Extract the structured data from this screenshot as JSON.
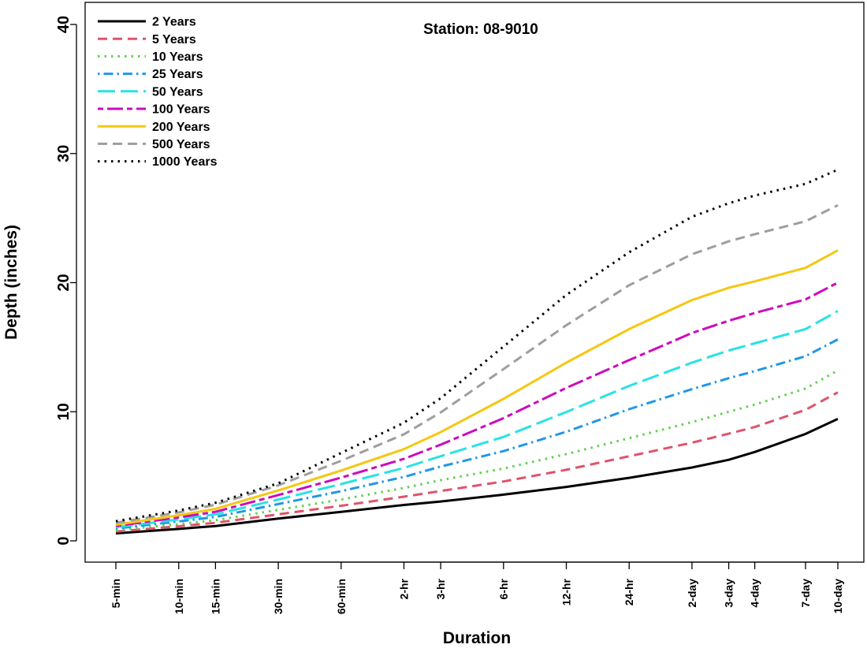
{
  "chart_data": {
    "type": "line",
    "title": "Station: 08-9010",
    "xlabel": "Duration",
    "ylabel": "Depth (inches)",
    "ylim": [
      0,
      40
    ],
    "yticks": [
      0,
      10,
      20,
      30,
      40
    ],
    "grid": false,
    "legend_position": "top-left",
    "x": [
      "5-min",
      "10-min",
      "15-min",
      "30-min",
      "60-min",
      "2-hr",
      "3-hr",
      "6-hr",
      "12-hr",
      "24-hr",
      "2-day",
      "3-day",
      "4-day",
      "7-day",
      "10-day"
    ],
    "x_hours": [
      0.0833,
      0.1667,
      0.25,
      0.5,
      1,
      2,
      3,
      6,
      12,
      24,
      48,
      72,
      96,
      168,
      240
    ],
    "x_scale": "log",
    "series": [
      {
        "name": "2 Years",
        "color": "#000000",
        "dash": "solid",
        "values": [
          0.58,
          0.92,
          1.15,
          1.72,
          2.25,
          2.78,
          3.05,
          3.58,
          4.18,
          4.88,
          5.68,
          6.28,
          6.88,
          8.28,
          9.45
        ]
      },
      {
        "name": "5 Years",
        "color": "#df536b",
        "dash": "dashed",
        "values": [
          0.72,
          1.13,
          1.4,
          2.05,
          2.72,
          3.42,
          3.86,
          4.6,
          5.5,
          6.55,
          7.6,
          8.3,
          8.82,
          10.15,
          11.5
        ]
      },
      {
        "name": "10 Years",
        "color": "#61d04f",
        "dash": "dotted",
        "values": [
          0.82,
          1.3,
          1.6,
          2.4,
          3.2,
          4.1,
          4.7,
          5.6,
          6.72,
          7.95,
          9.2,
          10.0,
          10.55,
          11.8,
          13.2
        ]
      },
      {
        "name": "25 Years",
        "color": "#2297e6",
        "dash": "dotdash",
        "values": [
          0.95,
          1.5,
          1.85,
          2.85,
          3.85,
          4.95,
          5.75,
          6.95,
          8.45,
          10.2,
          11.75,
          12.6,
          13.15,
          14.3,
          15.6
        ]
      },
      {
        "name": "50 Years",
        "color": "#28e2e5",
        "dash": "longdash",
        "values": [
          1.05,
          1.66,
          2.05,
          3.2,
          4.4,
          5.65,
          6.55,
          8.05,
          9.98,
          12.0,
          13.8,
          14.75,
          15.3,
          16.4,
          17.8
        ]
      },
      {
        "name": "100 Years",
        "color": "#cd0bbc",
        "dash": "twodash",
        "values": [
          1.15,
          1.82,
          2.25,
          3.55,
          4.9,
          6.35,
          7.45,
          9.5,
          11.85,
          14.0,
          16.1,
          17.05,
          17.65,
          18.7,
          20.0
        ]
      },
      {
        "name": "200 Years",
        "color": "#f5c710",
        "dash": "solid",
        "values": [
          1.25,
          1.98,
          2.48,
          3.9,
          5.45,
          7.1,
          8.42,
          11.0,
          13.8,
          16.4,
          18.65,
          19.6,
          20.1,
          21.15,
          22.5
        ]
      },
      {
        "name": "500 Years",
        "color": "#9e9e9e",
        "dash": "dashed",
        "values": [
          1.4,
          2.2,
          2.8,
          4.3,
          6.2,
          8.25,
          9.95,
          13.3,
          16.7,
          19.8,
          22.2,
          23.2,
          23.75,
          24.75,
          26.0
        ]
      },
      {
        "name": "1000 Years",
        "color": "#000000",
        "dash": "dotted",
        "values": [
          1.52,
          2.35,
          2.95,
          4.45,
          6.8,
          9.15,
          11.05,
          15.05,
          19.05,
          22.35,
          25.1,
          26.15,
          26.75,
          27.65,
          28.75
        ]
      }
    ]
  }
}
